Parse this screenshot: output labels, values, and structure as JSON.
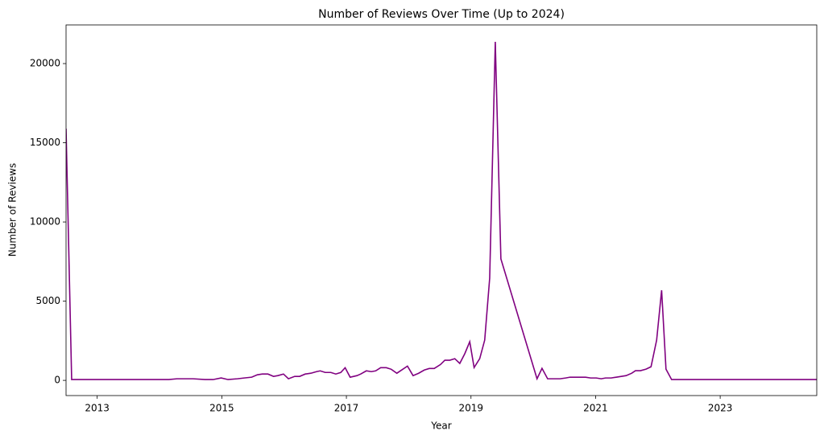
{
  "chart_data": {
    "type": "line",
    "title": "Number of Reviews Over Time (Up to 2024)",
    "x_label": "Year",
    "y_label": "Number of Reviews",
    "x": [
      2012.5,
      2012.59,
      2012.73,
      2012.86,
      2013.12,
      2013.38,
      2013.63,
      2013.89,
      2014.15,
      2014.28,
      2014.54,
      2014.73,
      2014.86,
      2014.99,
      2015.1,
      2015.25,
      2015.36,
      2015.48,
      2015.57,
      2015.65,
      2015.74,
      2015.83,
      2015.9,
      2015.99,
      2016.07,
      2016.17,
      2016.25,
      2016.34,
      2016.43,
      2016.52,
      2016.58,
      2016.66,
      2016.75,
      2016.83,
      2016.91,
      2016.98,
      2017.06,
      2017.17,
      2017.23,
      2017.32,
      2017.4,
      2017.47,
      2017.55,
      2017.64,
      2017.72,
      2017.81,
      2017.98,
      2018.07,
      2018.16,
      2018.25,
      2018.33,
      2018.41,
      2018.51,
      2018.58,
      2018.66,
      2018.74,
      2018.82,
      2018.9,
      2018.98,
      2019.05,
      2019.14,
      2019.22,
      2019.3,
      2019.39,
      2019.48,
      2020.06,
      2020.14,
      2020.23,
      2020.33,
      2020.43,
      2020.52,
      2020.59,
      2020.67,
      2020.75,
      2020.84,
      2020.92,
      2021.01,
      2021.09,
      2021.16,
      2021.25,
      2021.33,
      2021.41,
      2021.49,
      2021.58,
      2021.64,
      2021.72,
      2021.81,
      2021.89,
      2021.98,
      2022.06,
      2022.13,
      2022.22,
      2022.43,
      2023.08,
      2023.72,
      2024.55
    ],
    "series": [
      {
        "name": "Number of Reviews",
        "color": "#800080",
        "values": [
          15890,
          50,
          50,
          50,
          50,
          50,
          50,
          50,
          50,
          100,
          100,
          50,
          50,
          150,
          50,
          100,
          150,
          200,
          350,
          400,
          400,
          250,
          300,
          400,
          100,
          250,
          250,
          400,
          450,
          550,
          600,
          500,
          500,
          400,
          500,
          800,
          200,
          300,
          400,
          600,
          550,
          600,
          800,
          800,
          700,
          450,
          900,
          300,
          450,
          650,
          750,
          750,
          1000,
          1270,
          1270,
          1370,
          1070,
          1680,
          2440,
          810,
          1370,
          2540,
          6450,
          21370,
          7670,
          100,
          760,
          100,
          100,
          100,
          150,
          200,
          200,
          200,
          200,
          150,
          150,
          100,
          150,
          150,
          200,
          250,
          300,
          450,
          610,
          610,
          710,
          860,
          2540,
          5690,
          710,
          50,
          50,
          50,
          50,
          50
        ]
      }
    ],
    "xlim": [
      2012.5,
      2024.55
    ],
    "ylim": [
      -960,
      22440
    ],
    "xticks": [
      2013,
      2015,
      2017,
      2019,
      2021,
      2023
    ],
    "yticks": [
      0,
      5000,
      10000,
      15000,
      20000
    ]
  }
}
